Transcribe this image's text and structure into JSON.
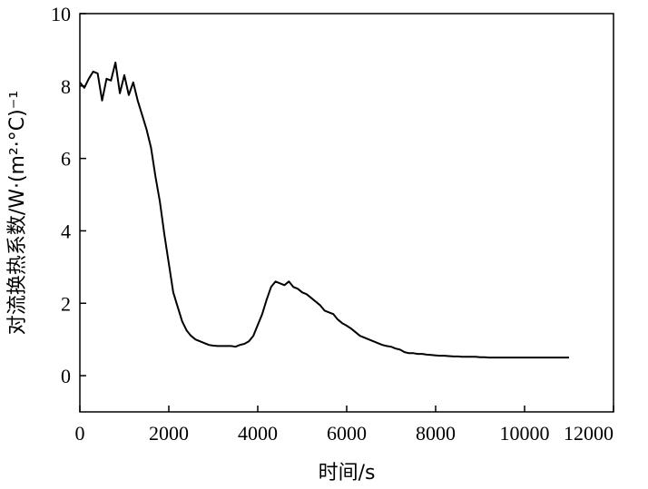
{
  "chart_data": {
    "type": "line",
    "xlabel": "时间/s",
    "ylabel": "对流换热系数/W·(m²·°C)⁻¹",
    "xlim": [
      0,
      12000
    ],
    "ylim": [
      -1,
      10
    ],
    "xticks": [
      0,
      2000,
      4000,
      6000,
      8000,
      10000,
      12000
    ],
    "yticks": [
      0,
      2,
      4,
      6,
      8,
      10
    ],
    "grid": false,
    "series": [
      {
        "x": [
          0,
          100,
          200,
          300,
          400,
          500,
          600,
          700,
          800,
          900,
          1000,
          1100,
          1200,
          1300,
          1400,
          1500,
          1600,
          1700,
          1800,
          1900,
          2000,
          2100,
          2200,
          2300,
          2400,
          2500,
          2600,
          2700,
          2800,
          2900,
          3000,
          3100,
          3200,
          3300,
          3400,
          3500,
          3600,
          3700,
          3800,
          3900,
          4000,
          4100,
          4200,
          4300,
          4400,
          4500,
          4600,
          4700,
          4800,
          4900,
          5000,
          5100,
          5200,
          5300,
          5400,
          5500,
          5600,
          5700,
          5800,
          5900,
          6000,
          6100,
          6200,
          6300,
          6400,
          6500,
          6600,
          6700,
          6800,
          6900,
          7000,
          7100,
          7200,
          7300,
          7400,
          7500,
          7600,
          7700,
          7800,
          7900,
          8000,
          8100,
          8200,
          8300,
          8400,
          8500,
          8600,
          8700,
          8800,
          8900,
          9000,
          9100,
          9200,
          9300,
          9400,
          9500,
          9600,
          9700,
          9800,
          9900,
          10000,
          10100,
          10200,
          10300,
          10400,
          10500,
          10600,
          10700,
          10800,
          10900,
          11000
        ],
        "y": [
          8.1,
          7.95,
          8.2,
          8.4,
          8.35,
          7.6,
          8.2,
          8.15,
          8.65,
          7.8,
          8.3,
          7.75,
          8.1,
          7.6,
          7.2,
          6.8,
          6.3,
          5.5,
          4.8,
          3.9,
          3.1,
          2.3,
          1.9,
          1.5,
          1.25,
          1.1,
          1.0,
          0.95,
          0.9,
          0.85,
          0.83,
          0.82,
          0.82,
          0.82,
          0.82,
          0.8,
          0.85,
          0.88,
          0.95,
          1.1,
          1.4,
          1.7,
          2.1,
          2.45,
          2.6,
          2.55,
          2.5,
          2.6,
          2.45,
          2.4,
          2.3,
          2.25,
          2.15,
          2.05,
          1.95,
          1.8,
          1.75,
          1.7,
          1.55,
          1.45,
          1.38,
          1.3,
          1.2,
          1.1,
          1.05,
          1.0,
          0.95,
          0.9,
          0.85,
          0.82,
          0.8,
          0.75,
          0.72,
          0.65,
          0.62,
          0.62,
          0.6,
          0.6,
          0.58,
          0.57,
          0.56,
          0.55,
          0.55,
          0.54,
          0.53,
          0.53,
          0.52,
          0.52,
          0.52,
          0.52,
          0.51,
          0.51,
          0.5,
          0.5,
          0.5,
          0.5,
          0.5,
          0.5,
          0.5,
          0.5,
          0.5,
          0.5,
          0.5,
          0.5,
          0.5,
          0.5,
          0.5,
          0.5,
          0.5,
          0.5,
          0.5
        ]
      }
    ]
  }
}
